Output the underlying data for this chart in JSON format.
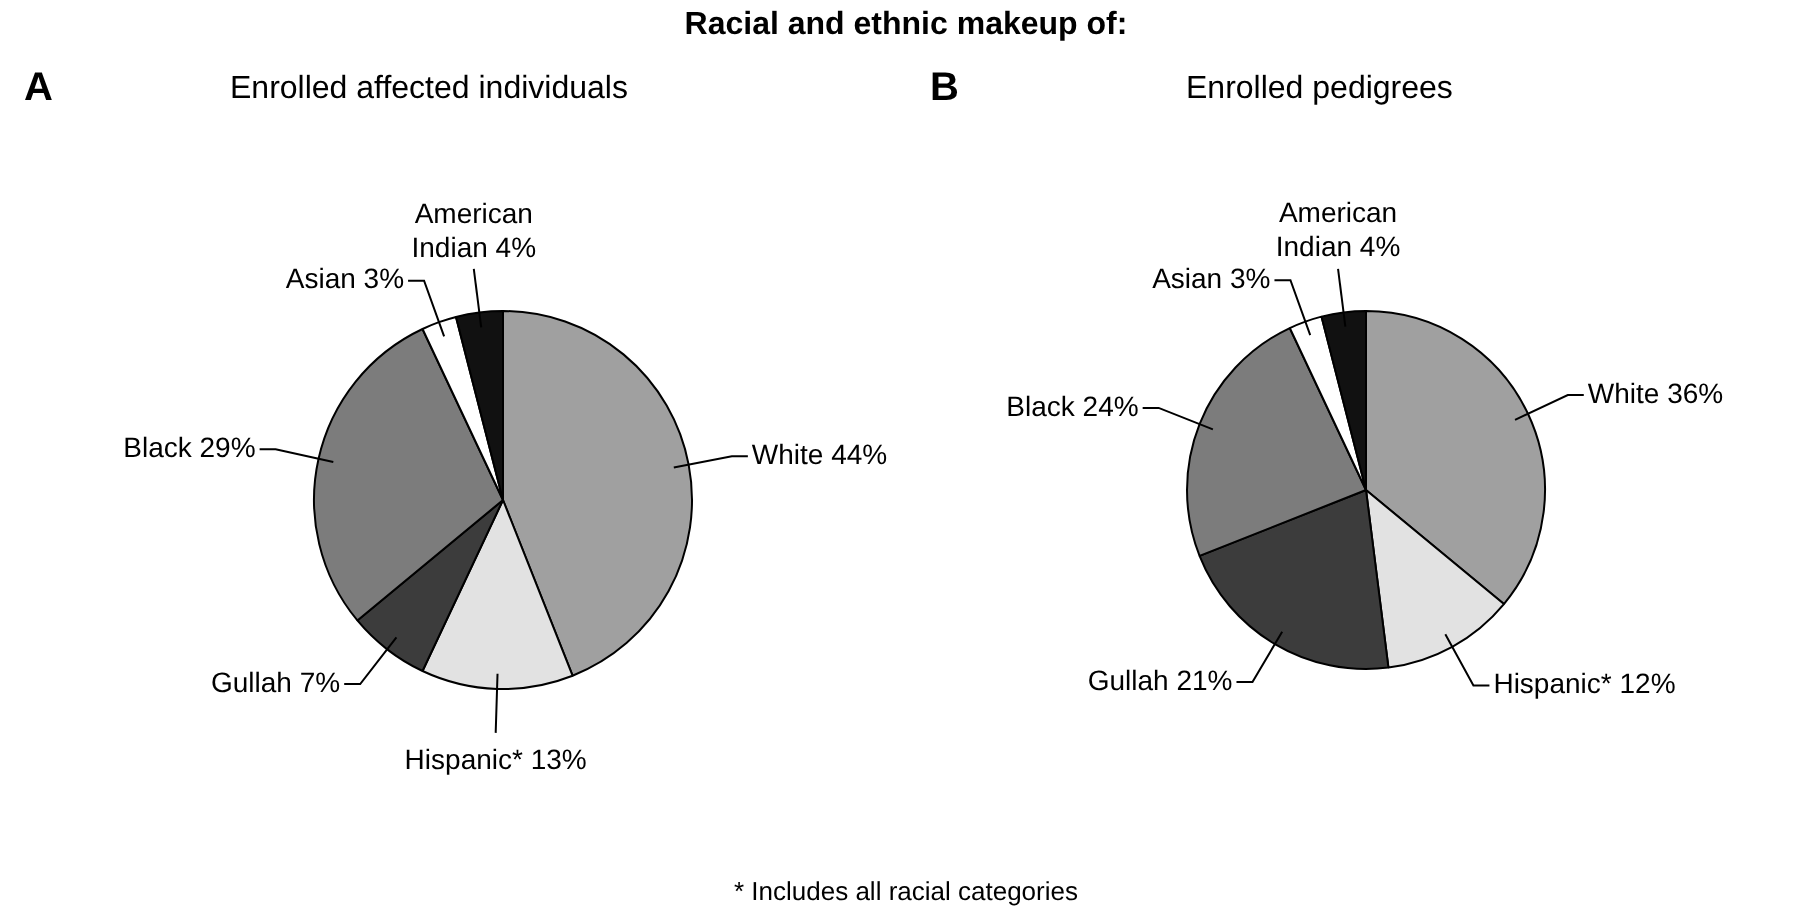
{
  "chart_data": [
    {
      "type": "pie",
      "title": "Racial and ethnic makeup of:",
      "subtitle": "Enrolled affected individuals",
      "annotations": [
        "A",
        "* Includes all racial categories"
      ],
      "categories": [
        "White",
        "Hispanic*",
        "Gullah",
        "Black",
        "Asian",
        "American Indian"
      ],
      "values": [
        44,
        13,
        7,
        29,
        3,
        4
      ],
      "value_labels": [
        "44%",
        "13%",
        "7%",
        "29%",
        "3%",
        "4%"
      ],
      "colors": [
        "#a0a0a0",
        "#e2e2e2",
        "#3c3c3c",
        "#7c7c7c",
        "#ffffff",
        "#111111"
      ],
      "legend": false
    },
    {
      "type": "pie",
      "subtitle": "Enrolled pedigrees",
      "annotations": [
        "B"
      ],
      "categories": [
        "White",
        "Hispanic*",
        "Gullah",
        "Black",
        "Asian",
        "American Indian"
      ],
      "values": [
        36,
        12,
        21,
        24,
        3,
        4
      ],
      "value_labels": [
        "36%",
        "12%",
        "21%",
        "24%",
        "3%",
        "4%"
      ],
      "colors": [
        "#a0a0a0",
        "#e2e2e2",
        "#3c3c3c",
        "#7c7c7c",
        "#ffffff",
        "#111111"
      ],
      "legend": false
    }
  ]
}
